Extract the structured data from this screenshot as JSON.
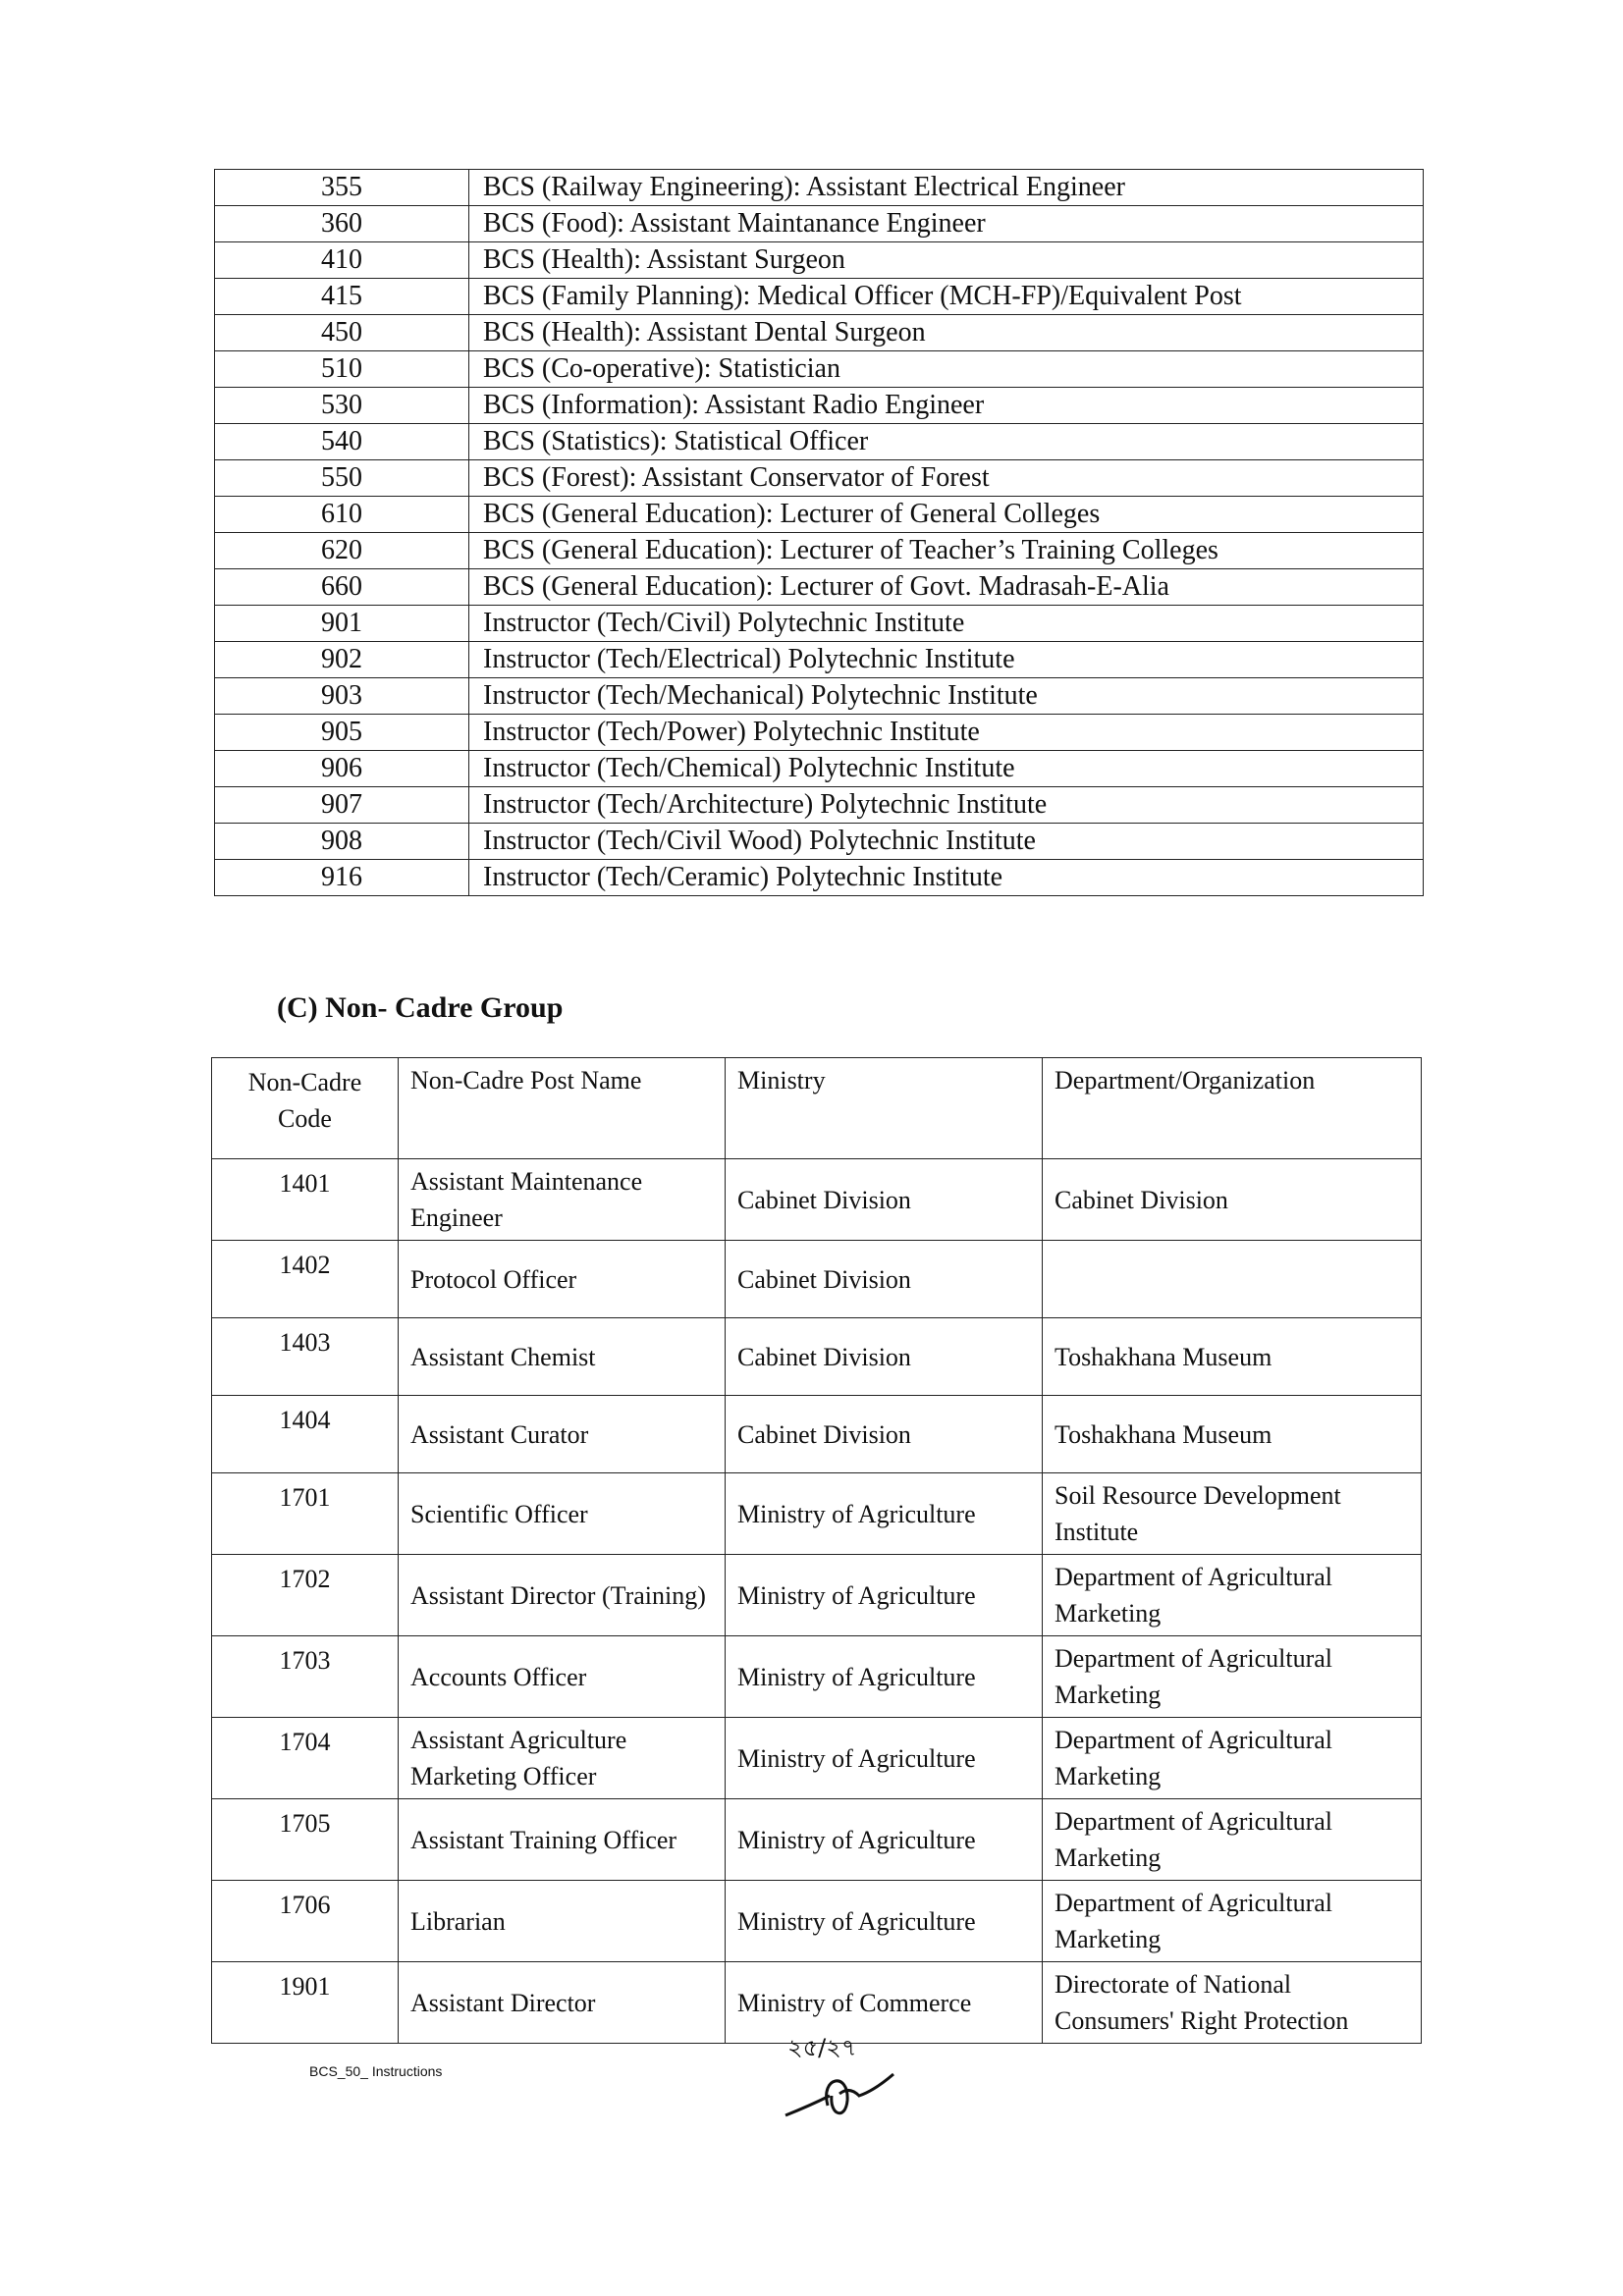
{
  "cadre_table": {
    "rows": [
      {
        "code": "355",
        "name": "BCS (Railway Engineering): Assistant Electrical Engineer"
      },
      {
        "code": "360",
        "name": "BCS (Food): Assistant Maintanance Engineer"
      },
      {
        "code": "410",
        "name": "BCS (Health): Assistant Surgeon"
      },
      {
        "code": "415",
        "name": "BCS (Family Planning): Medical Officer (MCH-FP)/Equivalent Post"
      },
      {
        "code": "450",
        "name": "BCS (Health): Assistant Dental Surgeon"
      },
      {
        "code": "510",
        "name": "BCS (Co-operative): Statistician"
      },
      {
        "code": "530",
        "name": "BCS (Information): Assistant Radio Engineer"
      },
      {
        "code": "540",
        "name": "BCS (Statistics): Statistical Officer"
      },
      {
        "code": "550",
        "name": "BCS (Forest): Assistant Conservator of Forest"
      },
      {
        "code": "610",
        "name": "BCS (General Education): Lecturer of General Colleges"
      },
      {
        "code": "620",
        "name": "BCS (General Education):   Lecturer of Teacher’s Training Colleges"
      },
      {
        "code": "660",
        "name": "BCS (General Education): Lecturer of Govt. Madrasah-E-Alia"
      },
      {
        "code": "901",
        "name": "Instructor (Tech/Civil) Polytechnic Institute"
      },
      {
        "code": "902",
        "name": "Instructor (Tech/Electrical) Polytechnic Institute"
      },
      {
        "code": "903",
        "name": "Instructor (Tech/Mechanical) Polytechnic Institute"
      },
      {
        "code": "905",
        "name": "Instructor (Tech/Power) Polytechnic Institute"
      },
      {
        "code": "906",
        "name": "Instructor (Tech/Chemical) Polytechnic Institute"
      },
      {
        "code": "907",
        "name": "Instructor (Tech/Architecture) Polytechnic Institute"
      },
      {
        "code": "908",
        "name": "Instructor (Tech/Civil Wood) Polytechnic Institute"
      },
      {
        "code": "916",
        "name": "Instructor (Tech/Ceramic) Polytechnic Institute"
      }
    ]
  },
  "non_cadre": {
    "heading": "(C) Non- Cadre Group",
    "headers": [
      "Non-Cadre Code",
      "Non-Cadre Post Name",
      "Ministry",
      "Department/Organization"
    ],
    "rows": [
      {
        "code": "1401",
        "post": "Assistant Maintenance Engineer",
        "ministry": "Cabinet Division",
        "dept": "Cabinet Division"
      },
      {
        "code": "1402",
        "post": "Protocol Officer",
        "ministry": "Cabinet Division",
        "dept": ""
      },
      {
        "code": "1403",
        "post": "Assistant Chemist",
        "ministry": "Cabinet Division",
        "dept": "Toshakhana Museum"
      },
      {
        "code": "1404",
        "post": "Assistant Curator",
        "ministry": "Cabinet Division",
        "dept": "Toshakhana Museum"
      },
      {
        "code": "1701",
        "post": "Scientific Officer",
        "ministry": "Ministry of Agriculture",
        "dept": "Soil Resource Development Institute"
      },
      {
        "code": "1702",
        "post": "Assistant Director (Training)",
        "ministry": "Ministry of Agriculture",
        "dept": "Department of Agricultural Marketing"
      },
      {
        "code": "1703",
        "post": "Accounts Officer",
        "ministry": "Ministry of Agriculture",
        "dept": "Department of Agricultural Marketing"
      },
      {
        "code": "1704",
        "post": "Assistant Agriculture Marketing Officer",
        "ministry": "Ministry of Agriculture",
        "dept": "Department of Agricultural Marketing"
      },
      {
        "code": "1705",
        "post": "Assistant Training Officer",
        "ministry": "Ministry of Agriculture",
        "dept": "Department of Agricultural Marketing"
      },
      {
        "code": "1706",
        "post": "Librarian",
        "ministry": "Ministry of Agriculture",
        "dept": "Department of Agricultural Marketing"
      },
      {
        "code": "1901",
        "post": "Assistant Director",
        "ministry": "Ministry of Commerce",
        "dept": "Directorate of National Consumers' Right Protection"
      }
    ]
  },
  "footer": {
    "doc_name": "BCS_50_ Instructions",
    "page_number": "২৫/২৭"
  }
}
